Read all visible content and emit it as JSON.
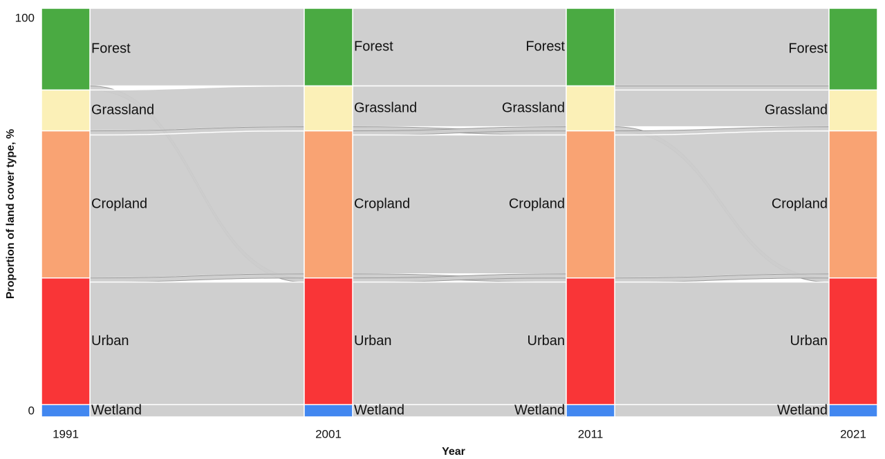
{
  "chart_data": {
    "type": "alluvial",
    "xlabel": "Year",
    "ylabel": "Proportion of land cover type, %",
    "x": [
      "1991",
      "2001",
      "2011",
      "2021"
    ],
    "ylim": [
      0,
      100
    ],
    "yticks": [
      0,
      100
    ],
    "series": [
      {
        "name": "Forest",
        "color": "#4aaa42",
        "values": [
          20,
          19,
          19,
          20
        ]
      },
      {
        "name": "Grassland",
        "color": "#fbf0b7",
        "values": [
          10,
          11,
          11,
          10
        ]
      },
      {
        "name": "Cropland",
        "color": "#f9a373",
        "values": [
          36,
          36,
          36,
          36
        ]
      },
      {
        "name": "Urban",
        "color": "#f93537",
        "values": [
          31,
          31,
          31,
          31
        ]
      },
      {
        "name": "Wetland",
        "color": "#4287f0",
        "values": [
          3,
          3,
          3,
          3
        ]
      }
    ],
    "flow_color": "#cccccc",
    "flows": [
      [
        {
          "from": "Forest",
          "to": "Forest",
          "value": 19
        },
        {
          "from": "Forest",
          "to": "Urban",
          "value": 1
        },
        {
          "from": "Grassland",
          "to": "Grassland",
          "value": 10
        },
        {
          "from": "Cropland",
          "to": "Grassland",
          "value": 1
        },
        {
          "from": "Cropland",
          "to": "Cropland",
          "value": 35
        },
        {
          "from": "Urban",
          "to": "Cropland",
          "value": 1
        },
        {
          "from": "Urban",
          "to": "Urban",
          "value": 30
        },
        {
          "from": "Wetland",
          "to": "Wetland",
          "value": 3
        }
      ],
      [
        {
          "from": "Forest",
          "to": "Forest",
          "value": 19
        },
        {
          "from": "Grassland",
          "to": "Grassland",
          "value": 10
        },
        {
          "from": "Grassland",
          "to": "Cropland",
          "value": 1
        },
        {
          "from": "Cropland",
          "to": "Grassland",
          "value": 1
        },
        {
          "from": "Cropland",
          "to": "Cropland",
          "value": 34
        },
        {
          "from": "Cropland",
          "to": "Urban",
          "value": 1
        },
        {
          "from": "Urban",
          "to": "Cropland",
          "value": 1
        },
        {
          "from": "Urban",
          "to": "Urban",
          "value": 30
        },
        {
          "from": "Wetland",
          "to": "Wetland",
          "value": 3
        }
      ],
      [
        {
          "from": "Forest",
          "to": "Forest",
          "value": 19
        },
        {
          "from": "Grassland",
          "to": "Forest",
          "value": 1
        },
        {
          "from": "Grassland",
          "to": "Grassland",
          "value": 9
        },
        {
          "from": "Grassland",
          "to": "Urban",
          "value": 1
        },
        {
          "from": "Cropland",
          "to": "Grassland",
          "value": 1
        },
        {
          "from": "Cropland",
          "to": "Cropland",
          "value": 35
        },
        {
          "from": "Urban",
          "to": "Cropland",
          "value": 1
        },
        {
          "from": "Urban",
          "to": "Urban",
          "value": 30
        },
        {
          "from": "Wetland",
          "to": "Wetland",
          "value": 3
        }
      ]
    ]
  }
}
